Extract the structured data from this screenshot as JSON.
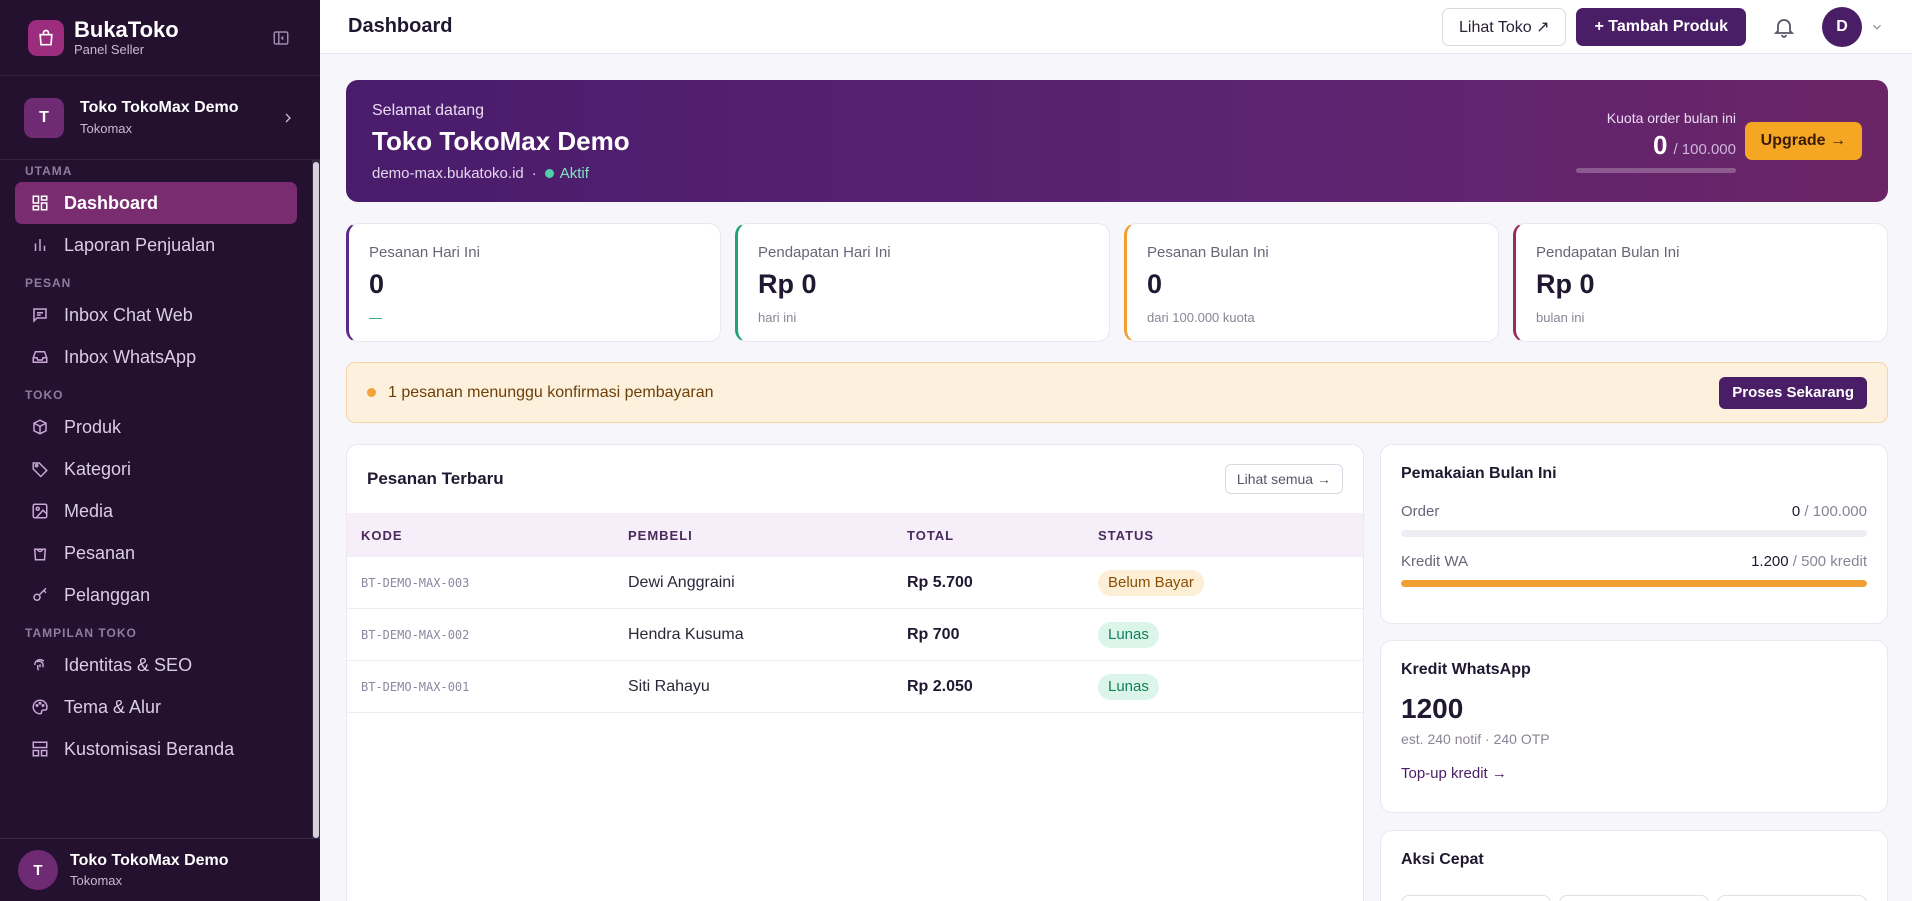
{
  "colors": {
    "sidebar_bg": "#24102f",
    "accent": "#4a1e66",
    "active_nav": "#7a2c70",
    "amber": "#f5a623"
  },
  "brand": {
    "name": "BukaToko",
    "sub": "Panel Seller"
  },
  "store": {
    "initial": "T",
    "name": "Toko TokoMax Demo",
    "sub": "Tokomax"
  },
  "nav": {
    "utama": "UTAMA",
    "dashboard": "Dashboard",
    "laporan": "Laporan Penjualan",
    "pesan": "PESAN",
    "inbox_web": "Inbox Chat Web",
    "inbox_wa": "Inbox WhatsApp",
    "toko": "TOKO",
    "produk": "Produk",
    "kategori": "Kategori",
    "media": "Media",
    "pesanan": "Pesanan",
    "pelanggan": "Pelanggan",
    "tampilan": "TAMPILAN TOKO",
    "identitas": "Identitas & SEO",
    "tema": "Tema & Alur",
    "kustomisasi": "Kustomisasi Beranda"
  },
  "sidebar_user": {
    "initial": "T",
    "name": "Toko TokoMax Demo",
    "sub": "Tokomax"
  },
  "topbar": {
    "title": "Dashboard",
    "view_store": "Lihat Toko ↗",
    "add_product": "+ Tambah Produk",
    "user_initial": "D"
  },
  "hero": {
    "greeting": "Selamat datang",
    "store_name": "Toko TokoMax Demo",
    "domain": "demo-max.bukatoko.id",
    "separator": "·",
    "status": "Aktif",
    "quota_label": "Kuota order bulan ini",
    "quota_used": "0",
    "quota_total": "/ 100.000",
    "quota_fraction": 0,
    "upgrade": "Upgrade →"
  },
  "stats": [
    {
      "label": "Pesanan Hari Ini",
      "value": "0",
      "sub": "—"
    },
    {
      "label": "Pendapatan Hari Ini",
      "value": "Rp 0",
      "sub": "hari ini"
    },
    {
      "label": "Pesanan Bulan Ini",
      "value": "0",
      "sub": "dari 100.000 kuota"
    },
    {
      "label": "Pendapatan Bulan Ini",
      "value": "Rp 0",
      "sub": "bulan ini"
    }
  ],
  "alert": {
    "text": "1 pesanan menunggu konfirmasi pembayaran",
    "action": "Proses Sekarang"
  },
  "orders": {
    "title": "Pesanan Terbaru",
    "see_all": "Lihat semua →",
    "headers": [
      "KODE",
      "PEMBELI",
      "TOTAL",
      "STATUS"
    ],
    "rows": [
      {
        "code": "BT-DEMO-MAX-003",
        "buyer": "Dewi Anggraini",
        "total": "Rp 5.700",
        "status": "Belum Bayar"
      },
      {
        "code": "BT-DEMO-MAX-002",
        "buyer": "Hendra Kusuma",
        "total": "Rp 700",
        "status": "Lunas"
      },
      {
        "code": "BT-DEMO-MAX-001",
        "buyer": "Siti Rahayu",
        "total": "Rp 2.050",
        "status": "Lunas"
      }
    ]
  },
  "usage": {
    "title": "Pemakaian Bulan Ini",
    "order_label": "Order",
    "order_used": "0",
    "order_total": " / 100.000",
    "order_fraction": 0,
    "wa_label": "Kredit WA",
    "wa_used": "1.200",
    "wa_total": " / 500 kredit",
    "wa_fraction": 1
  },
  "wa_credit": {
    "title": "Kredit WhatsApp",
    "value": "1200",
    "est": "est. 240 notif · 240 OTP",
    "topup": "Top-up kredit →"
  },
  "quick": {
    "title": "Aksi Cepat"
  }
}
